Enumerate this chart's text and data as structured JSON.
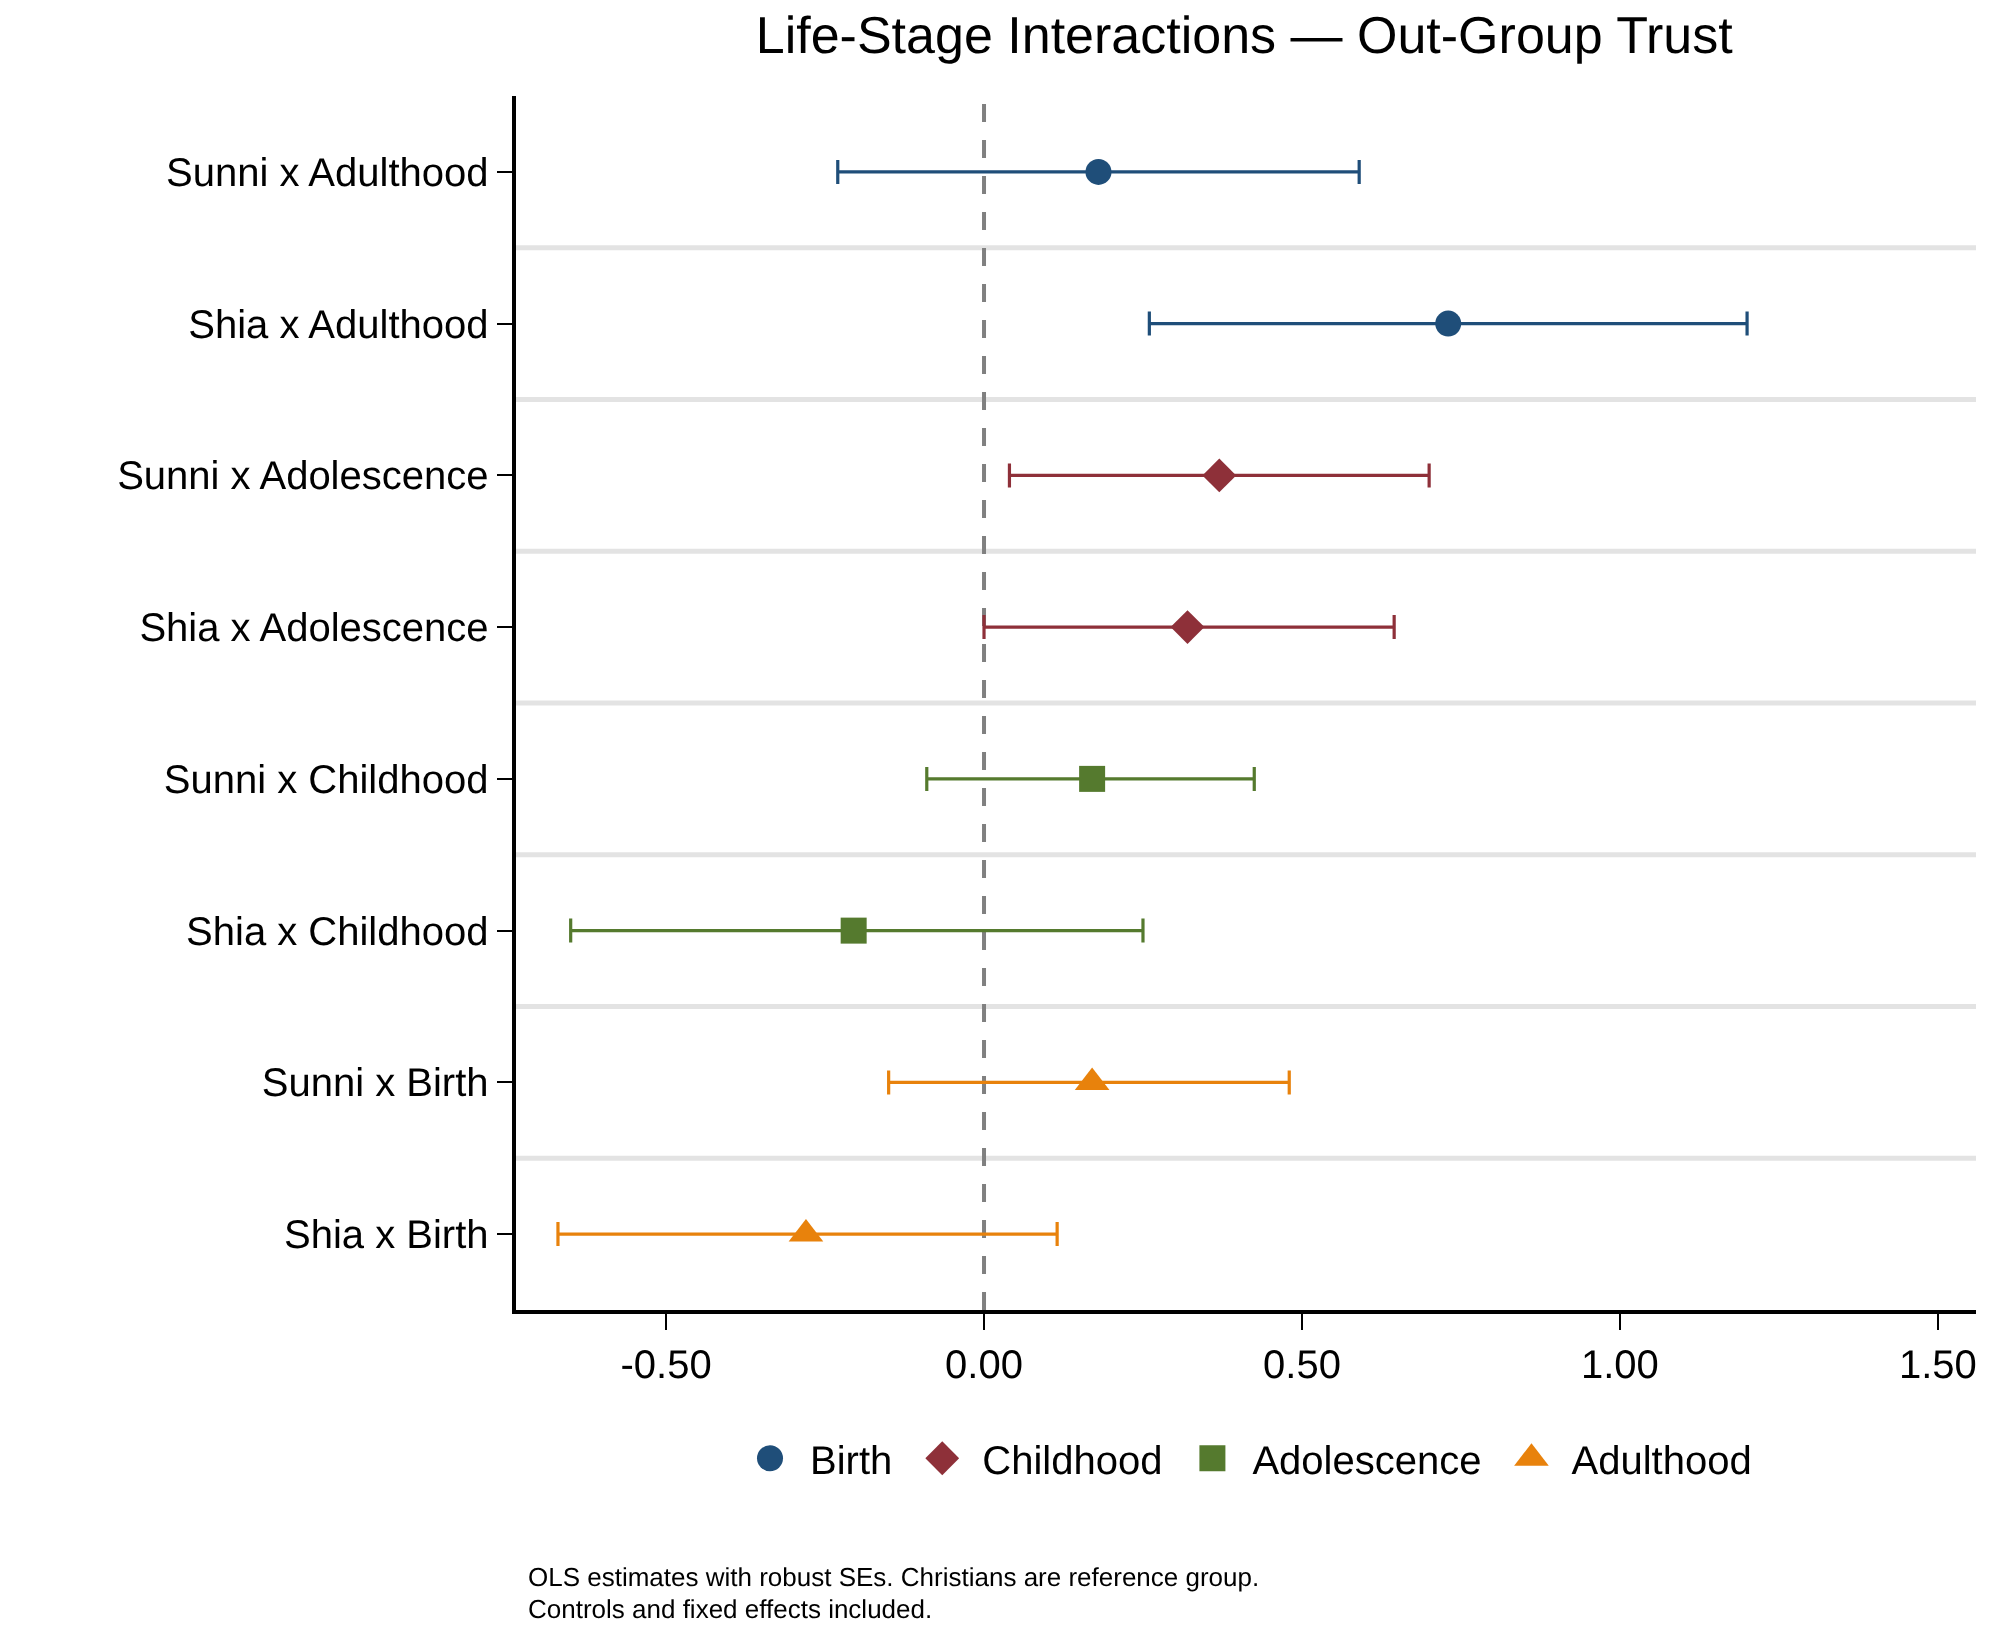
{
  "chart_data": {
    "type": "scatter",
    "orientation": "horizontal",
    "title": "Life-Stage Interactions — Out-Group Trust",
    "categories": [
      "Sunni x Adulthood",
      "Shia x Adulthood",
      "Sunni x Adolescence",
      "Shia x Adolescence",
      "Sunni x Childhood",
      "Shia x Childhood",
      "Sunni x Birth",
      "Shia x Birth"
    ],
    "series": [
      {
        "name": "Birth",
        "color": "#1f4e79",
        "marker": "circle",
        "values": [
          0.18,
          0.73,
          null,
          null,
          null,
          null,
          null,
          null
        ],
        "errors": [
          [
            -0.23,
            0.59
          ],
          [
            0.26,
            1.2
          ],
          null,
          null,
          null,
          null,
          null,
          null
        ]
      },
      {
        "name": "Childhood",
        "color": "#8e3039",
        "marker": "diamond",
        "values": [
          null,
          null,
          0.37,
          0.32,
          null,
          null,
          null,
          null
        ],
        "errors": [
          null,
          null,
          [
            0.04,
            0.7
          ],
          [
            0.0,
            0.645
          ],
          null,
          null,
          null,
          null
        ]
      },
      {
        "name": "Adolescence",
        "color": "#557a2e",
        "marker": "square",
        "values": [
          null,
          null,
          null,
          null,
          0.17,
          -0.205,
          null,
          null
        ],
        "errors": [
          null,
          null,
          null,
          null,
          [
            -0.09,
            0.425
          ],
          [
            -0.65,
            0.25
          ],
          null,
          null
        ]
      },
      {
        "name": "Adulthood",
        "color": "#e8820c",
        "marker": "triangle",
        "values": [
          null,
          null,
          null,
          null,
          null,
          null,
          0.17,
          -0.28
        ],
        "errors": [
          null,
          null,
          null,
          null,
          null,
          null,
          [
            -0.15,
            0.48
          ],
          [
            -0.67,
            0.115
          ]
        ]
      }
    ],
    "xlim": [
      -0.736,
      1.56
    ],
    "xticks": [
      {
        "value": -0.5,
        "label": "-0.50"
      },
      {
        "value": 0,
        "label": "0.00"
      },
      {
        "value": 0.5,
        "label": "0.50"
      },
      {
        "value": 1,
        "label": "1.00"
      },
      {
        "value": 1.5,
        "label": "1.50"
      }
    ],
    "ref_lines": [
      {
        "axis": "x",
        "value": 0,
        "color": "#808080",
        "line_style": "dashed"
      }
    ],
    "grid": "y",
    "legend": "bottom",
    "annotations": [
      "OLS estimates with robust SEs. Christians are reference group.",
      "Controls and fixed effects included."
    ]
  }
}
